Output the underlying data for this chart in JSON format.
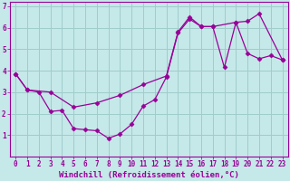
{
  "xlabel": "Windchill (Refroidissement éolien,°C)",
  "xlim": [
    -0.5,
    23.5
  ],
  "ylim": [
    0,
    7.2
  ],
  "xticks": [
    0,
    1,
    2,
    3,
    4,
    5,
    6,
    7,
    8,
    9,
    10,
    11,
    12,
    13,
    14,
    15,
    16,
    17,
    18,
    19,
    20,
    21,
    22,
    23
  ],
  "yticks": [
    1,
    2,
    3,
    4,
    5,
    6,
    7
  ],
  "background_color": "#c5e8e8",
  "grid_color": "#a0cccc",
  "line_color": "#990099",
  "line1_x": [
    0,
    1,
    2,
    3,
    4,
    5,
    6,
    7,
    8,
    9,
    10,
    11,
    12,
    13,
    14,
    15,
    16,
    17,
    18,
    19,
    20,
    21,
    22,
    23
  ],
  "line1_y": [
    3.85,
    3.1,
    3.0,
    2.1,
    2.15,
    1.3,
    1.25,
    1.2,
    0.85,
    1.05,
    1.5,
    2.35,
    2.65,
    3.7,
    5.75,
    6.4,
    6.05,
    6.05,
    4.15,
    6.25,
    4.8,
    4.55,
    4.7,
    4.5
  ],
  "line2_x": [
    0,
    1,
    3,
    5,
    7,
    9,
    11,
    13,
    14,
    15,
    16,
    17,
    19,
    20,
    21,
    23
  ],
  "line2_y": [
    3.85,
    3.1,
    3.0,
    2.3,
    2.5,
    2.85,
    3.35,
    3.75,
    5.8,
    6.5,
    6.05,
    6.05,
    6.25,
    6.3,
    6.65,
    4.5
  ],
  "font_family": "monospace",
  "tick_fontsize": 5.5,
  "label_fontsize": 6.5,
  "marker": "D",
  "marker_size": 2.5,
  "linewidth": 0.9
}
